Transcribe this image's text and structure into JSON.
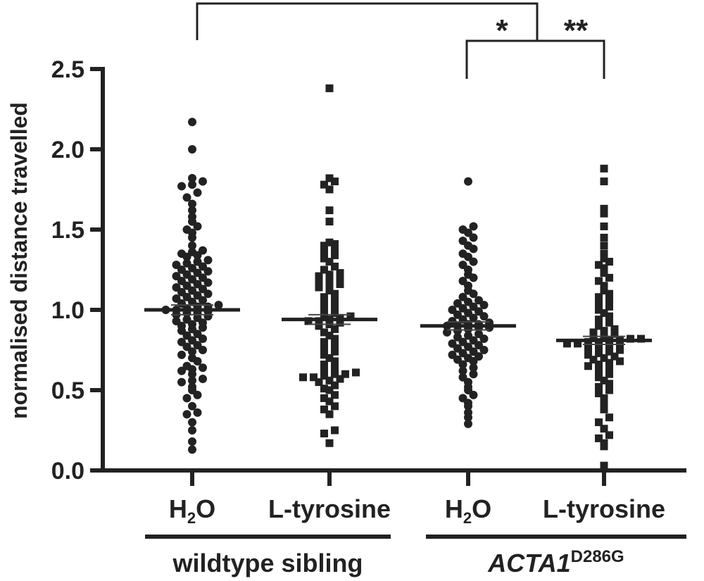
{
  "chart_data": {
    "type": "scatter",
    "ylabel": "normalised distance travelled",
    "ylim": [
      0,
      2.5
    ],
    "yticks": [
      "0.0",
      "0.5",
      "1.0",
      "1.5",
      "2.0",
      "2.5"
    ],
    "categories": [
      {
        "main": "H",
        "sub": "2",
        "tail": "O",
        "group": "wildtype sibling",
        "marker": "circle",
        "mean": 1.0,
        "sem": 0.03
      },
      {
        "main": "L-tyrosine",
        "sub": "",
        "tail": "",
        "group": "wildtype sibling",
        "marker": "square",
        "mean": 0.94,
        "sem": 0.03
      },
      {
        "main": "H",
        "sub": "2",
        "tail": "O",
        "group": "ACTA1D286G",
        "marker": "circle",
        "mean": 0.9,
        "sem": 0.025
      },
      {
        "main": "L-tyrosine",
        "sub": "",
        "tail": "",
        "group": "ACTA1D286G",
        "marker": "square",
        "mean": 0.81,
        "sem": 0.025
      }
    ],
    "groups": [
      {
        "label": "wildtype sibling",
        "italic": false,
        "superscript": "",
        "categories": [
          0,
          1
        ]
      },
      {
        "label": "ACTA1",
        "italic": true,
        "superscript": "D286G",
        "categories": [
          2,
          3
        ]
      }
    ],
    "significance": [
      {
        "from": 0,
        "to": 2.5,
        "label": ""
      },
      {
        "from": 2,
        "to": 3,
        "label_left": "*",
        "label_right": "**"
      }
    ],
    "series": [
      {
        "category": 0,
        "values": [
          0.13,
          0.18,
          0.25,
          0.3,
          0.35,
          0.36,
          0.4,
          0.45,
          0.47,
          0.5,
          0.52,
          0.55,
          0.56,
          0.57,
          0.6,
          0.62,
          0.63,
          0.64,
          0.65,
          0.68,
          0.7,
          0.72,
          0.74,
          0.75,
          0.77,
          0.78,
          0.8,
          0.81,
          0.82,
          0.84,
          0.85,
          0.87,
          0.88,
          0.89,
          0.9,
          0.91,
          0.92,
          0.93,
          0.94,
          0.95,
          0.96,
          0.97,
          0.98,
          0.98,
          0.99,
          1.0,
          1.0,
          1.01,
          1.02,
          1.02,
          1.03,
          1.04,
          1.05,
          1.06,
          1.07,
          1.08,
          1.09,
          1.1,
          1.11,
          1.12,
          1.13,
          1.14,
          1.15,
          1.16,
          1.17,
          1.18,
          1.19,
          1.2,
          1.21,
          1.22,
          1.23,
          1.24,
          1.25,
          1.26,
          1.27,
          1.28,
          1.29,
          1.3,
          1.31,
          1.33,
          1.34,
          1.35,
          1.36,
          1.37,
          1.4,
          1.45,
          1.48,
          1.5,
          1.52,
          1.55,
          1.58,
          1.62,
          1.66,
          1.7,
          1.73,
          1.77,
          1.78,
          1.8,
          1.82,
          2.0,
          2.17
        ]
      },
      {
        "category": 1,
        "values": [
          0.17,
          0.23,
          0.25,
          0.35,
          0.38,
          0.4,
          0.43,
          0.45,
          0.47,
          0.5,
          0.51,
          0.53,
          0.55,
          0.56,
          0.57,
          0.58,
          0.58,
          0.59,
          0.6,
          0.6,
          0.61,
          0.62,
          0.64,
          0.66,
          0.68,
          0.7,
          0.72,
          0.74,
          0.76,
          0.78,
          0.8,
          0.82,
          0.84,
          0.86,
          0.88,
          0.9,
          0.91,
          0.92,
          0.93,
          0.93,
          0.94,
          0.95,
          0.96,
          0.97,
          0.98,
          1.0,
          1.02,
          1.04,
          1.06,
          1.08,
          1.1,
          1.12,
          1.14,
          1.15,
          1.16,
          1.18,
          1.19,
          1.2,
          1.21,
          1.22,
          1.23,
          1.25,
          1.27,
          1.3,
          1.32,
          1.34,
          1.36,
          1.38,
          1.4,
          1.41,
          1.42,
          1.55,
          1.62,
          1.75,
          1.78,
          1.8,
          1.82,
          2.38
        ]
      },
      {
        "category": 2,
        "values": [
          0.29,
          0.33,
          0.36,
          0.4,
          0.42,
          0.45,
          0.47,
          0.5,
          0.52,
          0.55,
          0.58,
          0.6,
          0.62,
          0.64,
          0.66,
          0.68,
          0.69,
          0.7,
          0.71,
          0.72,
          0.73,
          0.74,
          0.75,
          0.76,
          0.77,
          0.78,
          0.79,
          0.8,
          0.81,
          0.82,
          0.83,
          0.84,
          0.85,
          0.86,
          0.87,
          0.88,
          0.89,
          0.89,
          0.9,
          0.9,
          0.91,
          0.91,
          0.92,
          0.93,
          0.94,
          0.95,
          0.96,
          0.97,
          0.98,
          0.99,
          1.0,
          1.01,
          1.02,
          1.03,
          1.04,
          1.05,
          1.06,
          1.08,
          1.1,
          1.12,
          1.15,
          1.18,
          1.2,
          1.22,
          1.25,
          1.28,
          1.3,
          1.33,
          1.35,
          1.38,
          1.4,
          1.43,
          1.45,
          1.48,
          1.5,
          1.52,
          1.8
        ]
      },
      {
        "category": 3,
        "values": [
          0.03,
          0.15,
          0.17,
          0.2,
          0.22,
          0.26,
          0.3,
          0.33,
          0.38,
          0.42,
          0.45,
          0.48,
          0.5,
          0.52,
          0.54,
          0.56,
          0.58,
          0.6,
          0.62,
          0.64,
          0.65,
          0.66,
          0.67,
          0.68,
          0.69,
          0.7,
          0.71,
          0.72,
          0.73,
          0.74,
          0.75,
          0.76,
          0.77,
          0.78,
          0.78,
          0.79,
          0.79,
          0.8,
          0.8,
          0.81,
          0.81,
          0.82,
          0.82,
          0.83,
          0.84,
          0.85,
          0.86,
          0.87,
          0.88,
          0.9,
          0.92,
          0.94,
          0.96,
          0.98,
          1.0,
          1.02,
          1.04,
          1.06,
          1.08,
          1.1,
          1.12,
          1.15,
          1.18,
          1.2,
          1.23,
          1.26,
          1.28,
          1.3,
          1.32,
          1.35,
          1.4,
          1.45,
          1.52,
          1.6,
          1.63,
          1.8,
          1.88
        ]
      }
    ]
  }
}
